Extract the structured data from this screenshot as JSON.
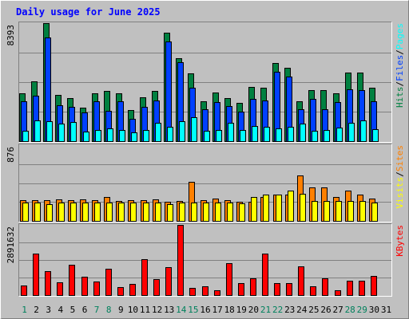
{
  "chart_data": {
    "type": "bar",
    "title": "Daily usage for June 2025",
    "categories": [
      "1",
      "2",
      "3",
      "4",
      "5",
      "6",
      "7",
      "8",
      "9",
      "10",
      "11",
      "12",
      "13",
      "14",
      "15",
      "16",
      "17",
      "18",
      "19",
      "20",
      "21",
      "22",
      "23",
      "24",
      "25",
      "26",
      "27",
      "28",
      "29",
      "30",
      "31"
    ],
    "weekend_days": [
      "1",
      "7",
      "8",
      "14",
      "15",
      "21",
      "22",
      "28",
      "29"
    ],
    "panels": [
      {
        "id": "hits",
        "ylim": [
          0,
          8393
        ],
        "max_tick_label": "8393",
        "series": [
          {
            "name": "Hits",
            "color": "#008040",
            "values": [
              3400,
              4250,
              8393,
              3300,
              3050,
              2400,
              3400,
              3550,
              3400,
              2200,
              3100,
              3600,
              7700,
              5900,
              4800,
              2850,
              3450,
              3050,
              2750,
              3850,
              3800,
              5550,
              5200,
              2850,
              3650,
              3650,
              3400,
              4850,
              4850,
              3800,
              0
            ]
          },
          {
            "name": "Files",
            "color": "#0040ff",
            "values": [
              2850,
              3250,
              7350,
              2550,
              2450,
              2050,
              2850,
              2150,
              2850,
              1600,
              2450,
              2900,
              7100,
              5600,
              3800,
              2250,
              2800,
              2500,
              2100,
              3000,
              2900,
              4950,
              4600,
              2250,
              3000,
              2250,
              2800,
              3700,
              3650,
              2850,
              0
            ]
          },
          {
            "name": "Pages",
            "color": "#00ffff",
            "values": [
              750,
              1450,
              1400,
              1250,
              1350,
              700,
              800,
              900,
              800,
              600,
              800,
              1300,
              1000,
              1400,
              1700,
              750,
              800,
              1300,
              800,
              1050,
              1000,
              900,
              1000,
              1250,
              750,
              800,
              950,
              1300,
              1450,
              850,
              0
            ]
          }
        ],
        "right_labels": [
          {
            "text": "Hits",
            "color": "#008040"
          },
          {
            "text": "/",
            "color": "#000000"
          },
          {
            "text": "Files",
            "color": "#0040ff"
          },
          {
            "text": "/",
            "color": "#000000"
          },
          {
            "text": "Pages",
            "color": "#00ffff"
          }
        ]
      },
      {
        "id": "visits",
        "ylim": [
          0,
          876
        ],
        "max_tick_label": "876",
        "series": [
          {
            "name": "Sites",
            "color": "#ff8000",
            "values": [
              240,
              240,
              240,
              250,
              240,
              250,
              240,
              275,
              230,
              240,
              240,
              250,
              220,
              235,
              455,
              240,
              255,
              240,
              220,
              220,
              280,
              300,
              305,
              525,
              385,
              385,
              280,
              350,
              305,
              255,
              0
            ]
          },
          {
            "name": "Visits",
            "color": "#ffff00",
            "values": [
              215,
              215,
              195,
              215,
              215,
              215,
              215,
              215,
              215,
              215,
              215,
              215,
              195,
              215,
              215,
              215,
              215,
              210,
              205,
              280,
              300,
              300,
              350,
              315,
              235,
              235,
              235,
              235,
              235,
              215,
              0
            ]
          }
        ],
        "right_labels": [
          {
            "text": "Visits",
            "color": "#ffff00"
          },
          {
            "text": "/",
            "color": "#000000"
          },
          {
            "text": "Sites",
            "color": "#ff8000"
          }
        ]
      },
      {
        "id": "kbytes",
        "ylim": [
          0,
          2891632
        ],
        "max_tick_label": "2891632",
        "series": [
          {
            "name": "KBytes",
            "color": "#ff0000",
            "values": [
              400000,
              1700000,
              1000000,
              520000,
              1250000,
              750000,
              570000,
              1070000,
              320000,
              450000,
              1480000,
              650000,
              1150000,
              2891632,
              300000,
              370000,
              190000,
              1300000,
              500000,
              700000,
              1700000,
              480000,
              480000,
              1180000,
              370000,
              680000,
              190000,
              600000,
              600000,
              780000,
              0
            ]
          }
        ],
        "right_labels": [
          {
            "text": "KBytes",
            "color": "#ff0000"
          }
        ]
      }
    ],
    "grid": true
  }
}
